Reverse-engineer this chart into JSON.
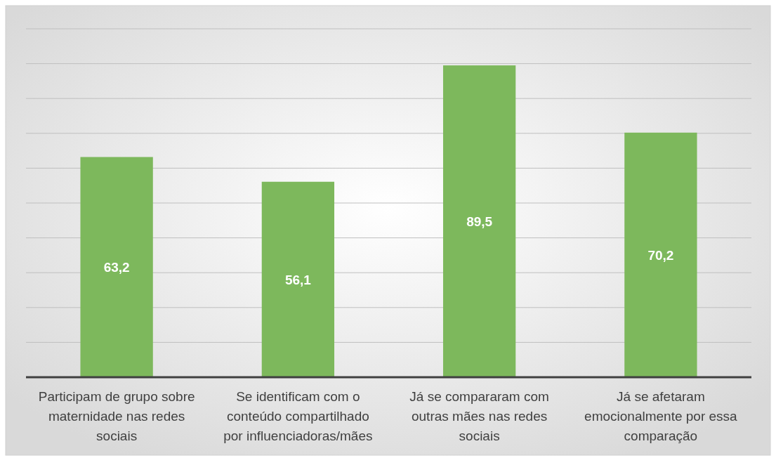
{
  "chart_data": {
    "type": "bar",
    "categories": [
      "Participam de grupo sobre maternidade nas redes sociais",
      "Se identificam com o conteúdo compartilhado por influenciadoras/mães",
      "Já se compararam com outras mães nas redes sociais",
      "Já se afetaram emocionalmente por essa comparação"
    ],
    "values": [
      63.2,
      56.1,
      89.5,
      70.2
    ],
    "value_labels": [
      "63,2",
      "56,1",
      "89,5",
      "70,2"
    ],
    "color": "#7db85c",
    "tick_labels": "x",
    "grid": "y"
  }
}
